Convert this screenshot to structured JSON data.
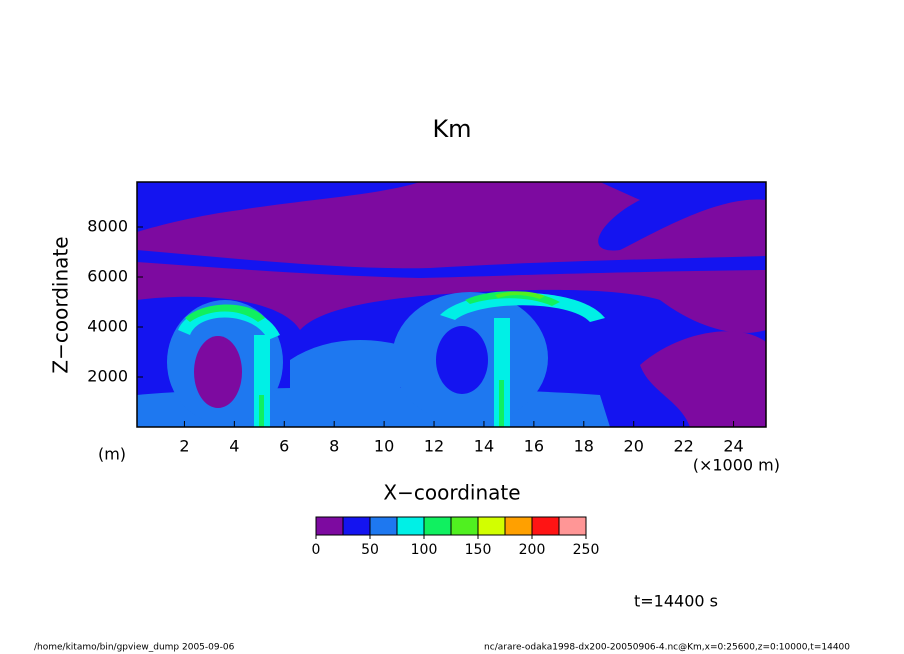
{
  "chart_data": {
    "type": "contour",
    "title": "Km",
    "xlabel": "X−coordinate",
    "ylabel": "Z−coordinate",
    "xunit": "(×1000 m)",
    "yunit": "(m)",
    "xlim": [
      0.1,
      25.3
    ],
    "xticks": [
      2,
      4,
      6,
      8,
      10,
      12,
      14,
      16,
      18,
      20,
      22,
      24
    ],
    "ylim": [
      0,
      9800
    ],
    "yticks": [
      2000,
      4000,
      6000,
      8000
    ],
    "levels": [
      0,
      25,
      50,
      75,
      100,
      125,
      150,
      175,
      200,
      225,
      250
    ],
    "colors": [
      "#7d0aa0",
      "#1414f0",
      "#1e78f0",
      "#00f0e6",
      "#10f060",
      "#50f020",
      "#d2ff00",
      "#ffa000",
      "#ff1414",
      "#ff9696"
    ],
    "colorbar_ticks": [
      0,
      50,
      100,
      150,
      200,
      250
    ],
    "time_label": "t=14400 s",
    "footer_left": "/home/kitamo/bin/gpview_dump  2005-09-06",
    "footer_right": "nc/arare-odaka1998-dx200-20050906-4.nc@Km,x=0:25600,z=0:10000,t=14400"
  }
}
